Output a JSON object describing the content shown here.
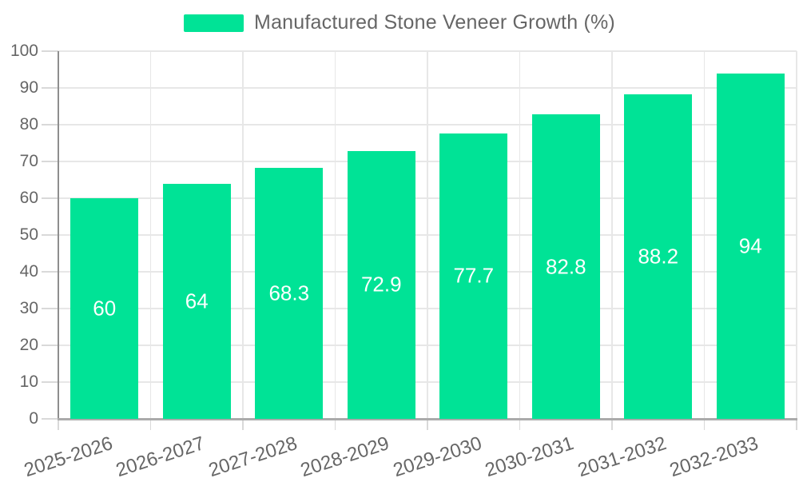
{
  "legend": {
    "label": "Manufactured Stone Veneer Growth (%)"
  },
  "colors": {
    "bar": "#00E396",
    "axis_text": "#666666",
    "data_label": "#ffffff",
    "grid": "#e7e7e7"
  },
  "chart_data": {
    "type": "bar",
    "title": "",
    "xlabel": "",
    "ylabel": "",
    "categories": [
      "2025-2026",
      "2026-2027",
      "2027-2028",
      "2028-2029",
      "2029-2030",
      "2030-2031",
      "2031-2032",
      "2032-2033"
    ],
    "series": [
      {
        "name": "Manufactured Stone Veneer Growth (%)",
        "values": [
          60,
          64,
          68.3,
          72.9,
          77.7,
          82.8,
          88.2,
          94
        ]
      }
    ],
    "value_labels": [
      "60",
      "64",
      "68.3",
      "72.9",
      "77.7",
      "82.8",
      "88.2",
      "94"
    ],
    "ylim": [
      0,
      100
    ],
    "ytick_step": 10,
    "ytick_labels": [
      "0",
      "10",
      "20",
      "30",
      "40",
      "50",
      "60",
      "70",
      "80",
      "90",
      "100"
    ],
    "grid": "horizontal and vertical gridlines on",
    "legend_position": "top-center",
    "bar_color": "#00E396"
  }
}
